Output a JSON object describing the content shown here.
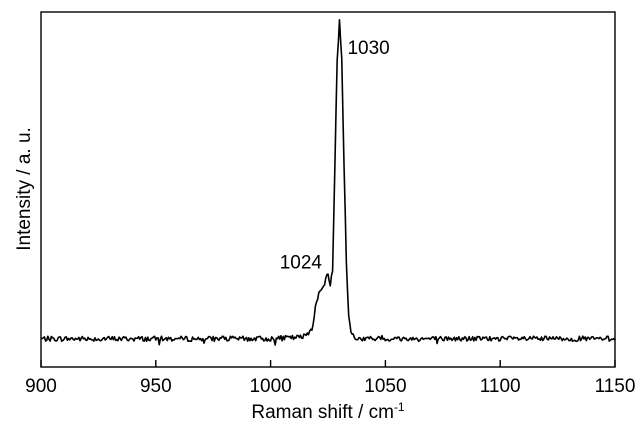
{
  "chart_data": {
    "type": "line",
    "title": "",
    "xlabel": "Raman shift / cm",
    "xlabel_superscript": "-1",
    "ylabel": "Intensity / a. u.",
    "xlim": [
      900,
      1150
    ],
    "ylim": [
      0,
      100
    ],
    "y_tick_labels_shown": false,
    "grid": false,
    "legend": "none",
    "line_color": "#000000",
    "x_ticks": [
      900,
      950,
      1000,
      1050,
      1100,
      1150
    ],
    "x_tick_labels": [
      "900",
      "950",
      "1000",
      "1050",
      "1100",
      "1150"
    ],
    "annotations": [
      {
        "text": "1030",
        "x": 1030,
        "y": 100
      },
      {
        "text": "1024",
        "x": 1024,
        "y": 21
      }
    ],
    "series": [
      {
        "x": [
          900,
          1000,
          1014,
          1018,
          1020,
          1021.5,
          1023,
          1024,
          1025,
          1026,
          1027,
          1028,
          1029,
          1030,
          1031,
          1032,
          1033,
          1034,
          1035,
          1037,
          1040,
          1150
        ],
        "y": [
          1.0,
          1.0,
          1.5,
          4.0,
          13.0,
          15.5,
          17.0,
          20.0,
          20.5,
          18.0,
          22.0,
          55.0,
          88.0,
          100.0,
          88.0,
          55.0,
          25.0,
          8.0,
          3.0,
          1.0,
          1.0,
          1.0
        ]
      }
    ]
  }
}
